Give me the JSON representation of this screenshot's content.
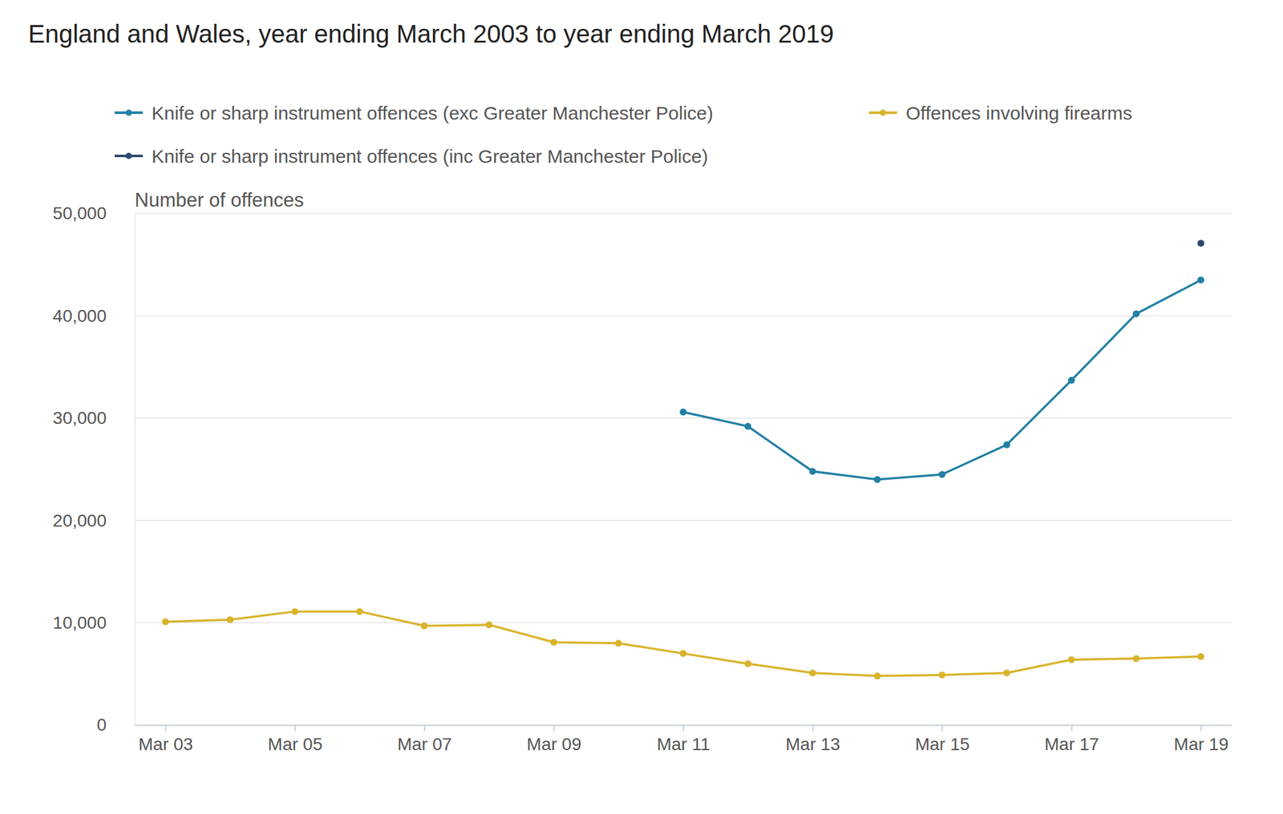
{
  "chart_data": {
    "type": "line",
    "title": "England and Wales, year ending March 2003 to year ending March 2019",
    "ylabel": "Number of offences",
    "categories": [
      "Mar 03",
      null,
      "Mar 05",
      null,
      "Mar 07",
      null,
      "Mar 09",
      null,
      "Mar 11",
      null,
      "Mar 13",
      null,
      "Mar 15",
      null,
      "Mar 17",
      null,
      "Mar 19"
    ],
    "series": [
      {
        "name": "Knife or sharp instrument offences (exc Greater Manchester Police)",
        "color": "#2280a5",
        "marker": "circle",
        "values": [
          null,
          null,
          null,
          null,
          null,
          null,
          null,
          null,
          30600,
          29200,
          24800,
          24000,
          24500,
          27400,
          33700,
          40200,
          43500
        ]
      },
      {
        "name": "Offences involving firearms",
        "color": "#d8b42c",
        "marker": "circle",
        "values": [
          10100,
          10300,
          11100,
          11100,
          9700,
          9800,
          8100,
          8000,
          7000,
          6000,
          5100,
          4800,
          4900,
          5100,
          6400,
          6500,
          6700
        ]
      },
      {
        "name": "Knife or sharp instrument offences (inc Greater Manchester Police)",
        "color": "#2e4a6b",
        "marker": "circle",
        "values": [
          null,
          null,
          null,
          null,
          null,
          null,
          null,
          null,
          null,
          null,
          null,
          null,
          null,
          null,
          null,
          null,
          47100
        ]
      }
    ],
    "ylim": [
      0,
      50000
    ],
    "yticks": [
      0,
      {
        "value": 10000,
        "label": "10,000"
      },
      {
        "value": 20000,
        "label": "20,000"
      },
      {
        "value": 30000,
        "label": "30,000"
      },
      {
        "value": 40000,
        "label": "40,000"
      },
      {
        "value": 50000,
        "label": "50,000"
      }
    ],
    "grid": true,
    "legend": "top"
  }
}
